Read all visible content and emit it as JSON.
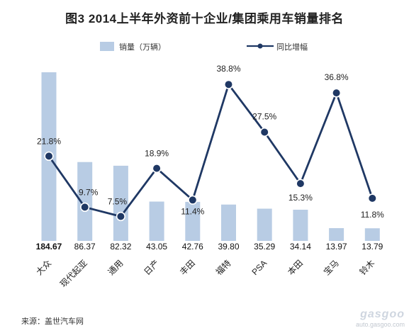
{
  "title": "图3   2014上半年外资前十企业/集团乘用车销量排名",
  "source": "来源：盖世汽车网",
  "watermark": {
    "logo": "gasgoo",
    "url": "auto.gasgoo.com"
  },
  "colors": {
    "bar": "#b8cce4",
    "line": "#1f3864",
    "marker_fill": "#1f3864",
    "marker_stroke": "#ffffff"
  },
  "chart_data": {
    "type": "bar",
    "categories": [
      "大众",
      "现代起亚",
      "通用",
      "日产",
      "丰田",
      "福特",
      "PSA",
      "本田",
      "宝马",
      "铃木"
    ],
    "series": [
      {
        "name": "销量（万辆）",
        "type": "bar",
        "axis": "left",
        "values": [
          184.67,
          86.37,
          82.32,
          43.05,
          42.76,
          39.8,
          35.29,
          34.14,
          13.97,
          13.79
        ],
        "labels": [
          "184.67",
          "86.37",
          "82.32",
          "43.05",
          "42.76",
          "39.80",
          "35.29",
          "34.14",
          "13.97",
          "13.79"
        ]
      },
      {
        "name": "同比增幅",
        "type": "line",
        "axis": "right",
        "values": [
          21.8,
          9.7,
          7.5,
          18.9,
          11.4,
          38.8,
          27.5,
          15.3,
          36.8,
          11.8
        ],
        "labels": [
          "21.8%",
          "9.7%",
          "7.5%",
          "18.9%",
          "11.4%",
          "38.8%",
          "27.5%",
          "15.3%",
          "36.8%",
          "11.8%"
        ]
      }
    ],
    "legend_position": "top",
    "grid": false,
    "axes_visible": false
  }
}
